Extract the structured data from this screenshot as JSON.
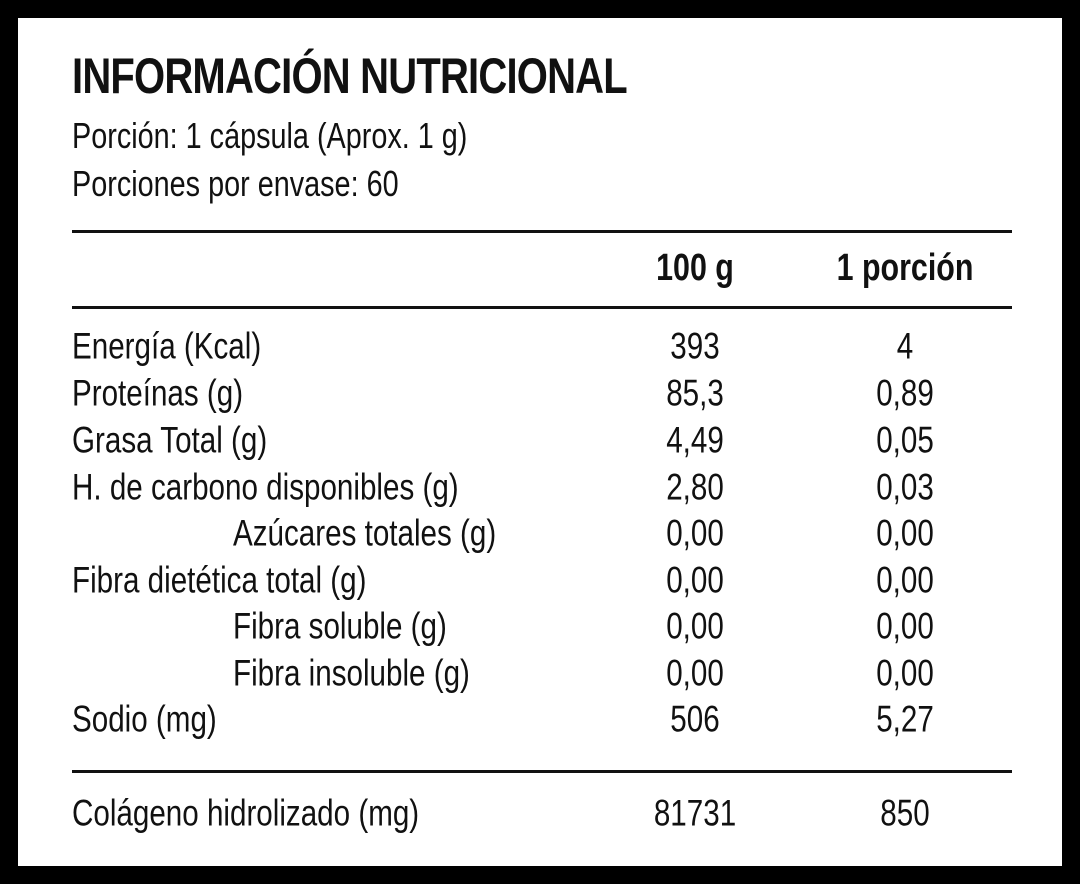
{
  "header": {
    "title": "INFORMACIÓN NUTRICIONAL",
    "serving": "Porción: 1 cápsula (Aprox. 1 g)",
    "servings_per_container": "Porciones por envase: 60"
  },
  "table": {
    "columns": [
      "100 g",
      "1 porción"
    ],
    "rows": [
      [
        "Energía (Kcal)",
        "393",
        "4"
      ],
      [
        "Proteínas (g)",
        "85,3",
        "0,89"
      ],
      [
        "Grasa Total (g)",
        "4,49",
        "0,05"
      ],
      [
        "H. de carbono disponibles (g)",
        "2,80",
        "0,03"
      ],
      [
        "Azúcares totales (g)",
        "0,00",
        "0,00"
      ],
      [
        "Fibra dietética total (g)",
        "0,00",
        "0,00"
      ],
      [
        "Fibra soluble (g)",
        "0,00",
        "0,00"
      ],
      [
        "Fibra insoluble (g)",
        "0,00",
        "0,00"
      ],
      [
        "Sodio (mg)",
        "506",
        "5,27"
      ],
      [
        "Colágeno hidrolizado (mg)",
        "81731",
        "850"
      ]
    ]
  }
}
